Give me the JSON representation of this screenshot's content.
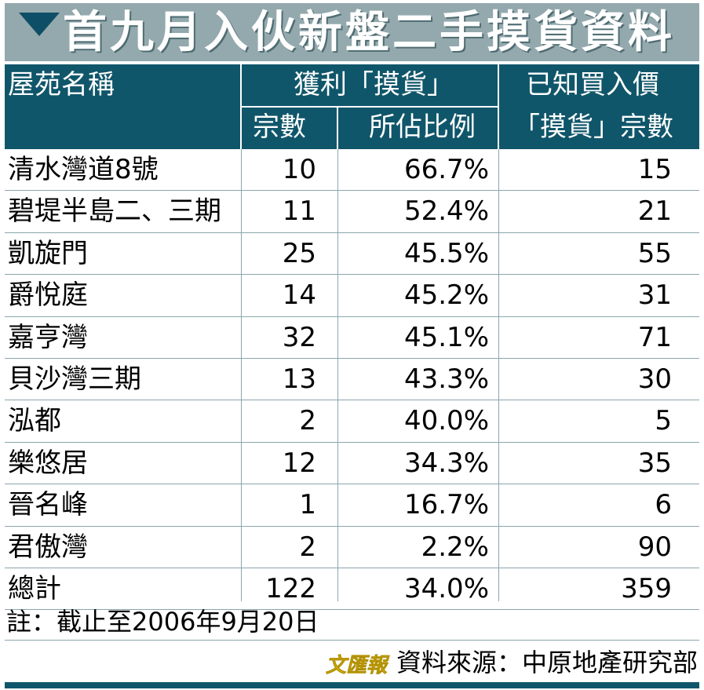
{
  "title": "首九月入伙新盤二手摸貨資料",
  "header": {
    "col_name": "屋苑名稱",
    "group_profit": "獲利「摸貨」",
    "col_count": "宗數",
    "col_share": "所佔比例",
    "col_known_line1": "已知買入價",
    "col_known_line2": "「摸貨」宗數"
  },
  "rows": [
    {
      "name": "清水灣道8號",
      "count": "10",
      "share": "66.7%",
      "known": "15"
    },
    {
      "name": "碧堤半島二、三期",
      "count": "11",
      "share": "52.4%",
      "known": "21"
    },
    {
      "name": "凱旋門",
      "count": "25",
      "share": "45.5%",
      "known": "55"
    },
    {
      "name": "爵悅庭",
      "count": "14",
      "share": "45.2%",
      "known": "31"
    },
    {
      "name": "嘉亨灣",
      "count": "32",
      "share": "45.1%",
      "known": "71"
    },
    {
      "name": "貝沙灣三期",
      "count": "13",
      "share": "43.3%",
      "known": "30"
    },
    {
      "name": "泓都",
      "count": "2",
      "share": "40.0%",
      "known": "5"
    },
    {
      "name": "樂悠居",
      "count": "12",
      "share": "34.3%",
      "known": "35"
    },
    {
      "name": "晉名峰",
      "count": "1",
      "share": "16.7%",
      "known": "6"
    },
    {
      "name": "君傲灣",
      "count": "2",
      "share": "2.2%",
      "known": "90"
    },
    {
      "name": "總計",
      "count": "122",
      "share": "34.0%",
      "known": "359"
    }
  ],
  "note": "註：截止至2006年9月20日",
  "source": {
    "logo_text": "文匯報",
    "text": "資料來源：中原地產研究部"
  },
  "colors": {
    "title_bg": "#93a9ad",
    "header_bg": "#10566a",
    "logo": "#e8c200"
  }
}
